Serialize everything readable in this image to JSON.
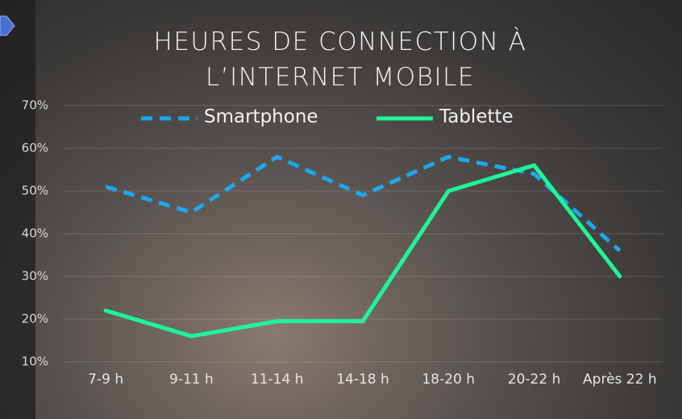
{
  "chart_data": {
    "type": "line",
    "title": "HEURES DE CONNECTION À L’INTERNET MOBILE",
    "categories": [
      "7-9 h",
      "9-11 h",
      "11-14 h",
      "14-18 h",
      "18-20 h",
      "20-22 h",
      "Après 22 h"
    ],
    "series": [
      {
        "name": "Smartphone",
        "color": "#1ea7ee",
        "dashed": true,
        "values": [
          51,
          45,
          58,
          49,
          58,
          54,
          36
        ]
      },
      {
        "name": "Tablette",
        "color": "#1ef59a",
        "dashed": false,
        "values": [
          22,
          16,
          19.5,
          19.5,
          50,
          56,
          30
        ]
      }
    ],
    "ylim": [
      10,
      70
    ],
    "yticks": [
      {
        "value": 10,
        "label": "10%"
      },
      {
        "value": 20,
        "label": "20%"
      },
      {
        "value": 30,
        "label": "30%"
      },
      {
        "value": 40,
        "label": "40%"
      },
      {
        "value": 50,
        "label": "50%"
      },
      {
        "value": 60,
        "label": "60%"
      },
      {
        "value": 70,
        "label": "70%"
      }
    ],
    "grid": true
  }
}
